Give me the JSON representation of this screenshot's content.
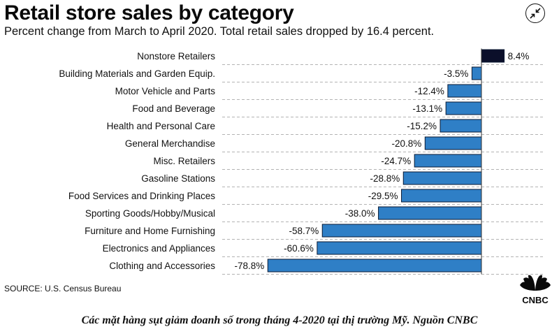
{
  "title": "Retail store sales by category",
  "subtitle": "Percent change from March to April 2020. Total retail sales dropped by 16.4 percent.",
  "source": "SOURCE: U.S. Census Bureau",
  "logo_text": "CNBC",
  "caption": "Các mặt hàng sụt giảm doanh số trong tháng 4-2020 tại thị trường Mỹ. Nguồn CNBC",
  "icons": {
    "expand": "collapse-arrows-icon"
  },
  "colors": {
    "positive": "#0b0f2a",
    "negative": "#2f7fc6",
    "bar_border": "#0b1a33",
    "grid": "#9a9a9a"
  },
  "chart_data": {
    "type": "bar",
    "orientation": "horizontal",
    "categories": [
      "Nonstore Retailers",
      "Building Materials and Garden Equip.",
      "Motor Vehicle and Parts",
      "Food and Beverage",
      "Health and Personal Care",
      "General Merchandise",
      "Misc. Retailers",
      "Gasoline Stations",
      "Food Services and Drinking Places",
      "Sporting Goods/Hobby/Musical",
      "Furniture and Home Furnishing",
      "Electronics and Appliances",
      "Clothing and Accessories"
    ],
    "values": [
      8.4,
      -3.5,
      -12.4,
      -13.1,
      -15.2,
      -20.8,
      -24.7,
      -28.8,
      -29.5,
      -38.0,
      -58.7,
      -60.6,
      -78.8
    ],
    "labels": [
      "8.4%",
      "-3.5%",
      "-12.4%",
      "-13.1%",
      "-15.2%",
      "-20.8%",
      "-24.7%",
      "-28.8%",
      "-29.5%",
      "-38.0%",
      "-58.7%",
      "-60.6%",
      "-78.8%"
    ],
    "xlim": [
      -78.8,
      8.4
    ],
    "grid": "dashed horizontal separators"
  }
}
